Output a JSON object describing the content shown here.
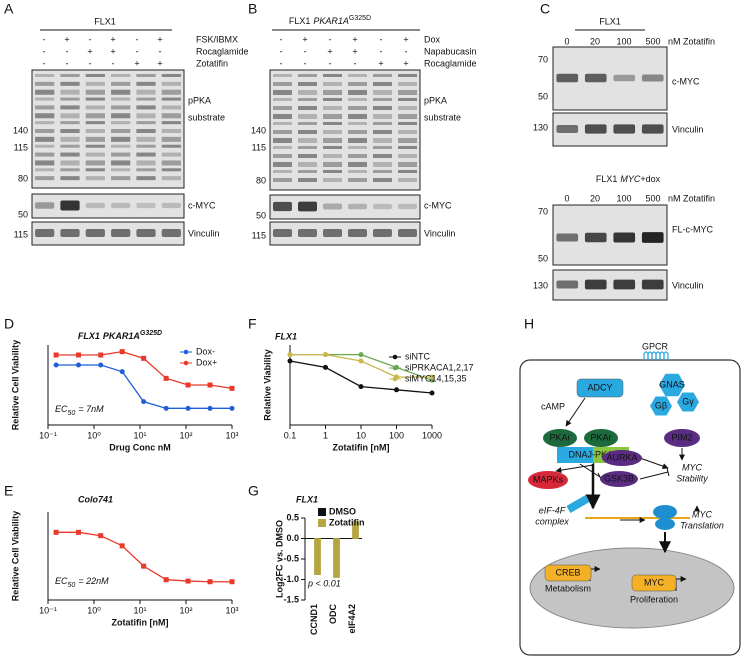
{
  "panel_labels": [
    "A",
    "B",
    "C",
    "D",
    "E",
    "F",
    "G",
    "H"
  ],
  "blot_a": {
    "title": "FLX1",
    "conditions": [
      {
        "label": "FSK/IBMX",
        "signs": [
          "-",
          "+",
          "-",
          "+",
          "-",
          "+"
        ]
      },
      {
        "label": "Rocaglamide",
        "signs": [
          "-",
          "-",
          "+",
          "+",
          "-",
          "-"
        ]
      },
      {
        "label": "Zotatifin",
        "signs": [
          "-",
          "-",
          "-",
          "-",
          "+",
          "+"
        ]
      }
    ],
    "markers": [
      140,
      115,
      80,
      50,
      115
    ],
    "labels": [
      "pPKA",
      "substrate",
      "c-MYC",
      "Vinculin"
    ]
  },
  "blot_b": {
    "title_parts": [
      "FLX1",
      "PKAR1A",
      "G325D"
    ],
    "conditions": [
      {
        "label": "Dox",
        "signs": [
          "-",
          "+",
          "-",
          "+",
          "-",
          "+"
        ]
      },
      {
        "label": "Napabucasin",
        "signs": [
          "-",
          "-",
          "+",
          "+",
          "-",
          "-"
        ]
      },
      {
        "label": "Rocaglamide",
        "signs": [
          "-",
          "-",
          "-",
          "-",
          "+",
          "+"
        ]
      }
    ],
    "markers": [
      140,
      115,
      80,
      50,
      115
    ],
    "labels": [
      "pPKA",
      "substrate",
      "c-MYC",
      "Vinculin"
    ]
  },
  "blot_c": {
    "title": "FLX1",
    "doses": [
      0,
      20,
      100,
      500
    ],
    "dose_unit": "nM Zotatifin",
    "markers": [
      70,
      50,
      130
    ],
    "labels": [
      "c-MYC",
      "Vinculin"
    ]
  },
  "blot_c2": {
    "title_parts": [
      "FLX1",
      "MYC",
      "+dox"
    ],
    "doses": [
      0,
      20,
      100,
      500
    ],
    "dose_unit": "nM Zotatifin",
    "markers": [
      70,
      50,
      130
    ],
    "labels": [
      "FL-c-MYC",
      "Vinculin"
    ]
  },
  "chart_data": [
    {
      "type": "line",
      "title_parts": [
        "FLX1",
        "PKAR1A",
        "G325D"
      ],
      "xlabel": "Drug Conc nM",
      "ylabel": "Relative Cell Viability",
      "xscale": "log",
      "xlim": [
        0.1,
        1000
      ],
      "ylim": [
        0.15,
        1.35
      ],
      "xticks": [
        {
          "value": 0.1,
          "label": "10⁻¹"
        },
        {
          "value": 1,
          "label": "10⁰"
        },
        {
          "value": 10,
          "label": "10¹"
        },
        {
          "value": 100,
          "label": "10²"
        },
        {
          "value": 1000,
          "label": "10³"
        }
      ],
      "x": [
        0.15,
        0.46,
        1.4,
        4.1,
        12,
        37,
        111,
        333,
        1000
      ],
      "series": [
        {
          "name": "Dox-",
          "color": "#1f5fd6",
          "marker": "circle",
          "values": [
            1.05,
            1.05,
            1.05,
            0.95,
            0.5,
            0.4,
            0.4,
            0.4,
            0.4
          ]
        },
        {
          "name": "Dox+",
          "color": "#e8392a",
          "marker": "square",
          "values": [
            1.2,
            1.2,
            1.2,
            1.25,
            1.15,
            0.85,
            0.75,
            0.75,
            0.7
          ]
        }
      ],
      "legend": "upper right",
      "annotation_parts": [
        "EC",
        "50",
        "= 7nM"
      ]
    },
    {
      "type": "line",
      "title": "Colo741",
      "xlabel": "Zotatifin [nM]",
      "ylabel": "Relative Cell Viability",
      "xscale": "log",
      "xlim": [
        0.1,
        1000
      ],
      "ylim": [
        0,
        1.3
      ],
      "xticks": [
        {
          "value": 0.1,
          "label": "10⁻¹"
        },
        {
          "value": 1,
          "label": "10⁰"
        },
        {
          "value": 10,
          "label": "10¹"
        },
        {
          "value": 100,
          "label": "10²"
        },
        {
          "value": 1000,
          "label": "10³"
        }
      ],
      "x": [
        0.15,
        0.46,
        1.4,
        4.1,
        12,
        37,
        111,
        333,
        1000
      ],
      "series": [
        {
          "name": "Colo741",
          "color": "#e8392a",
          "marker": "square",
          "values": [
            1.0,
            1.0,
            0.95,
            0.8,
            0.5,
            0.3,
            0.28,
            0.27,
            0.27
          ]
        }
      ],
      "annotation_parts": [
        "EC",
        "50",
        "= 22nM"
      ]
    },
    {
      "type": "line",
      "title": "FLX1",
      "xlabel": "Zotatifin [nM]",
      "ylabel": "Relative Viability",
      "xscale": "log",
      "xlim": [
        0.1,
        1000
      ],
      "ylim": [
        0,
        1.25
      ],
      "xticks": [
        {
          "value": 0.1,
          "label": "0.1"
        },
        1,
        10,
        100,
        1000
      ],
      "x": [
        0.1,
        1,
        10,
        100,
        1000
      ],
      "series": [
        {
          "name": "siNTC",
          "color": "#111111",
          "marker": "circle",
          "values": [
            1.0,
            0.9,
            0.6,
            0.55,
            0.5
          ]
        },
        {
          "name": "siPRKACA1,2,17",
          "color": "#6aa84f",
          "marker": "circle",
          "values": [
            1.1,
            1.1,
            1.1,
            0.9,
            0.7
          ]
        },
        {
          "name": "siMYC14,15,35",
          "color": "#c9b84a",
          "marker": "circle",
          "values": [
            1.1,
            1.1,
            1.0,
            0.75,
            0.75
          ]
        }
      ],
      "legend": "upper right"
    },
    {
      "type": "bar",
      "title": "FLX1",
      "ylabel": "Log2FC vs. DMSO",
      "categories": [
        "CCND1",
        "ODC",
        "eIF4A2"
      ],
      "ylim": [
        -1.5,
        0.5
      ],
      "yticks": [
        0.5,
        {
          "value": 0,
          "label": "0.0"
        },
        -0.5,
        {
          "value": -1,
          "label": "-1.0"
        },
        -1.5
      ],
      "series": [
        {
          "name": "DMSO",
          "color": "#111111",
          "values": [
            0,
            0,
            0
          ]
        },
        {
          "name": "Zotatifin",
          "color": "#b5a642",
          "values": [
            -0.88,
            -0.95,
            0.4
          ]
        }
      ],
      "legend": "upper left",
      "annotation": "p < 0.01"
    }
  ],
  "diagram": {
    "nodes": [
      {
        "label": "GPCR"
      },
      {
        "label": "GNAS"
      },
      {
        "label": "Gβ"
      },
      {
        "label": "Gγ"
      },
      {
        "label": "ADCY"
      },
      {
        "label": "cAMP"
      },
      {
        "label": "PKAr"
      },
      {
        "label": "PKAr"
      },
      {
        "label": "DNAJ-PKAc"
      },
      {
        "label": "PIM2"
      },
      {
        "label": "MYC"
      },
      {
        "label": "Stability"
      },
      {
        "label": "AURKA"
      },
      {
        "label": "GSK3B"
      },
      {
        "label": "MAPKs"
      },
      {
        "label": "eIF-4F"
      },
      {
        "label": "complex"
      },
      {
        "label": "MYC"
      },
      {
        "label": "Translation"
      },
      {
        "label": "CREB"
      },
      {
        "label": "Metabolism"
      },
      {
        "label": "MYC"
      },
      {
        "label": "Proliferation"
      }
    ]
  }
}
